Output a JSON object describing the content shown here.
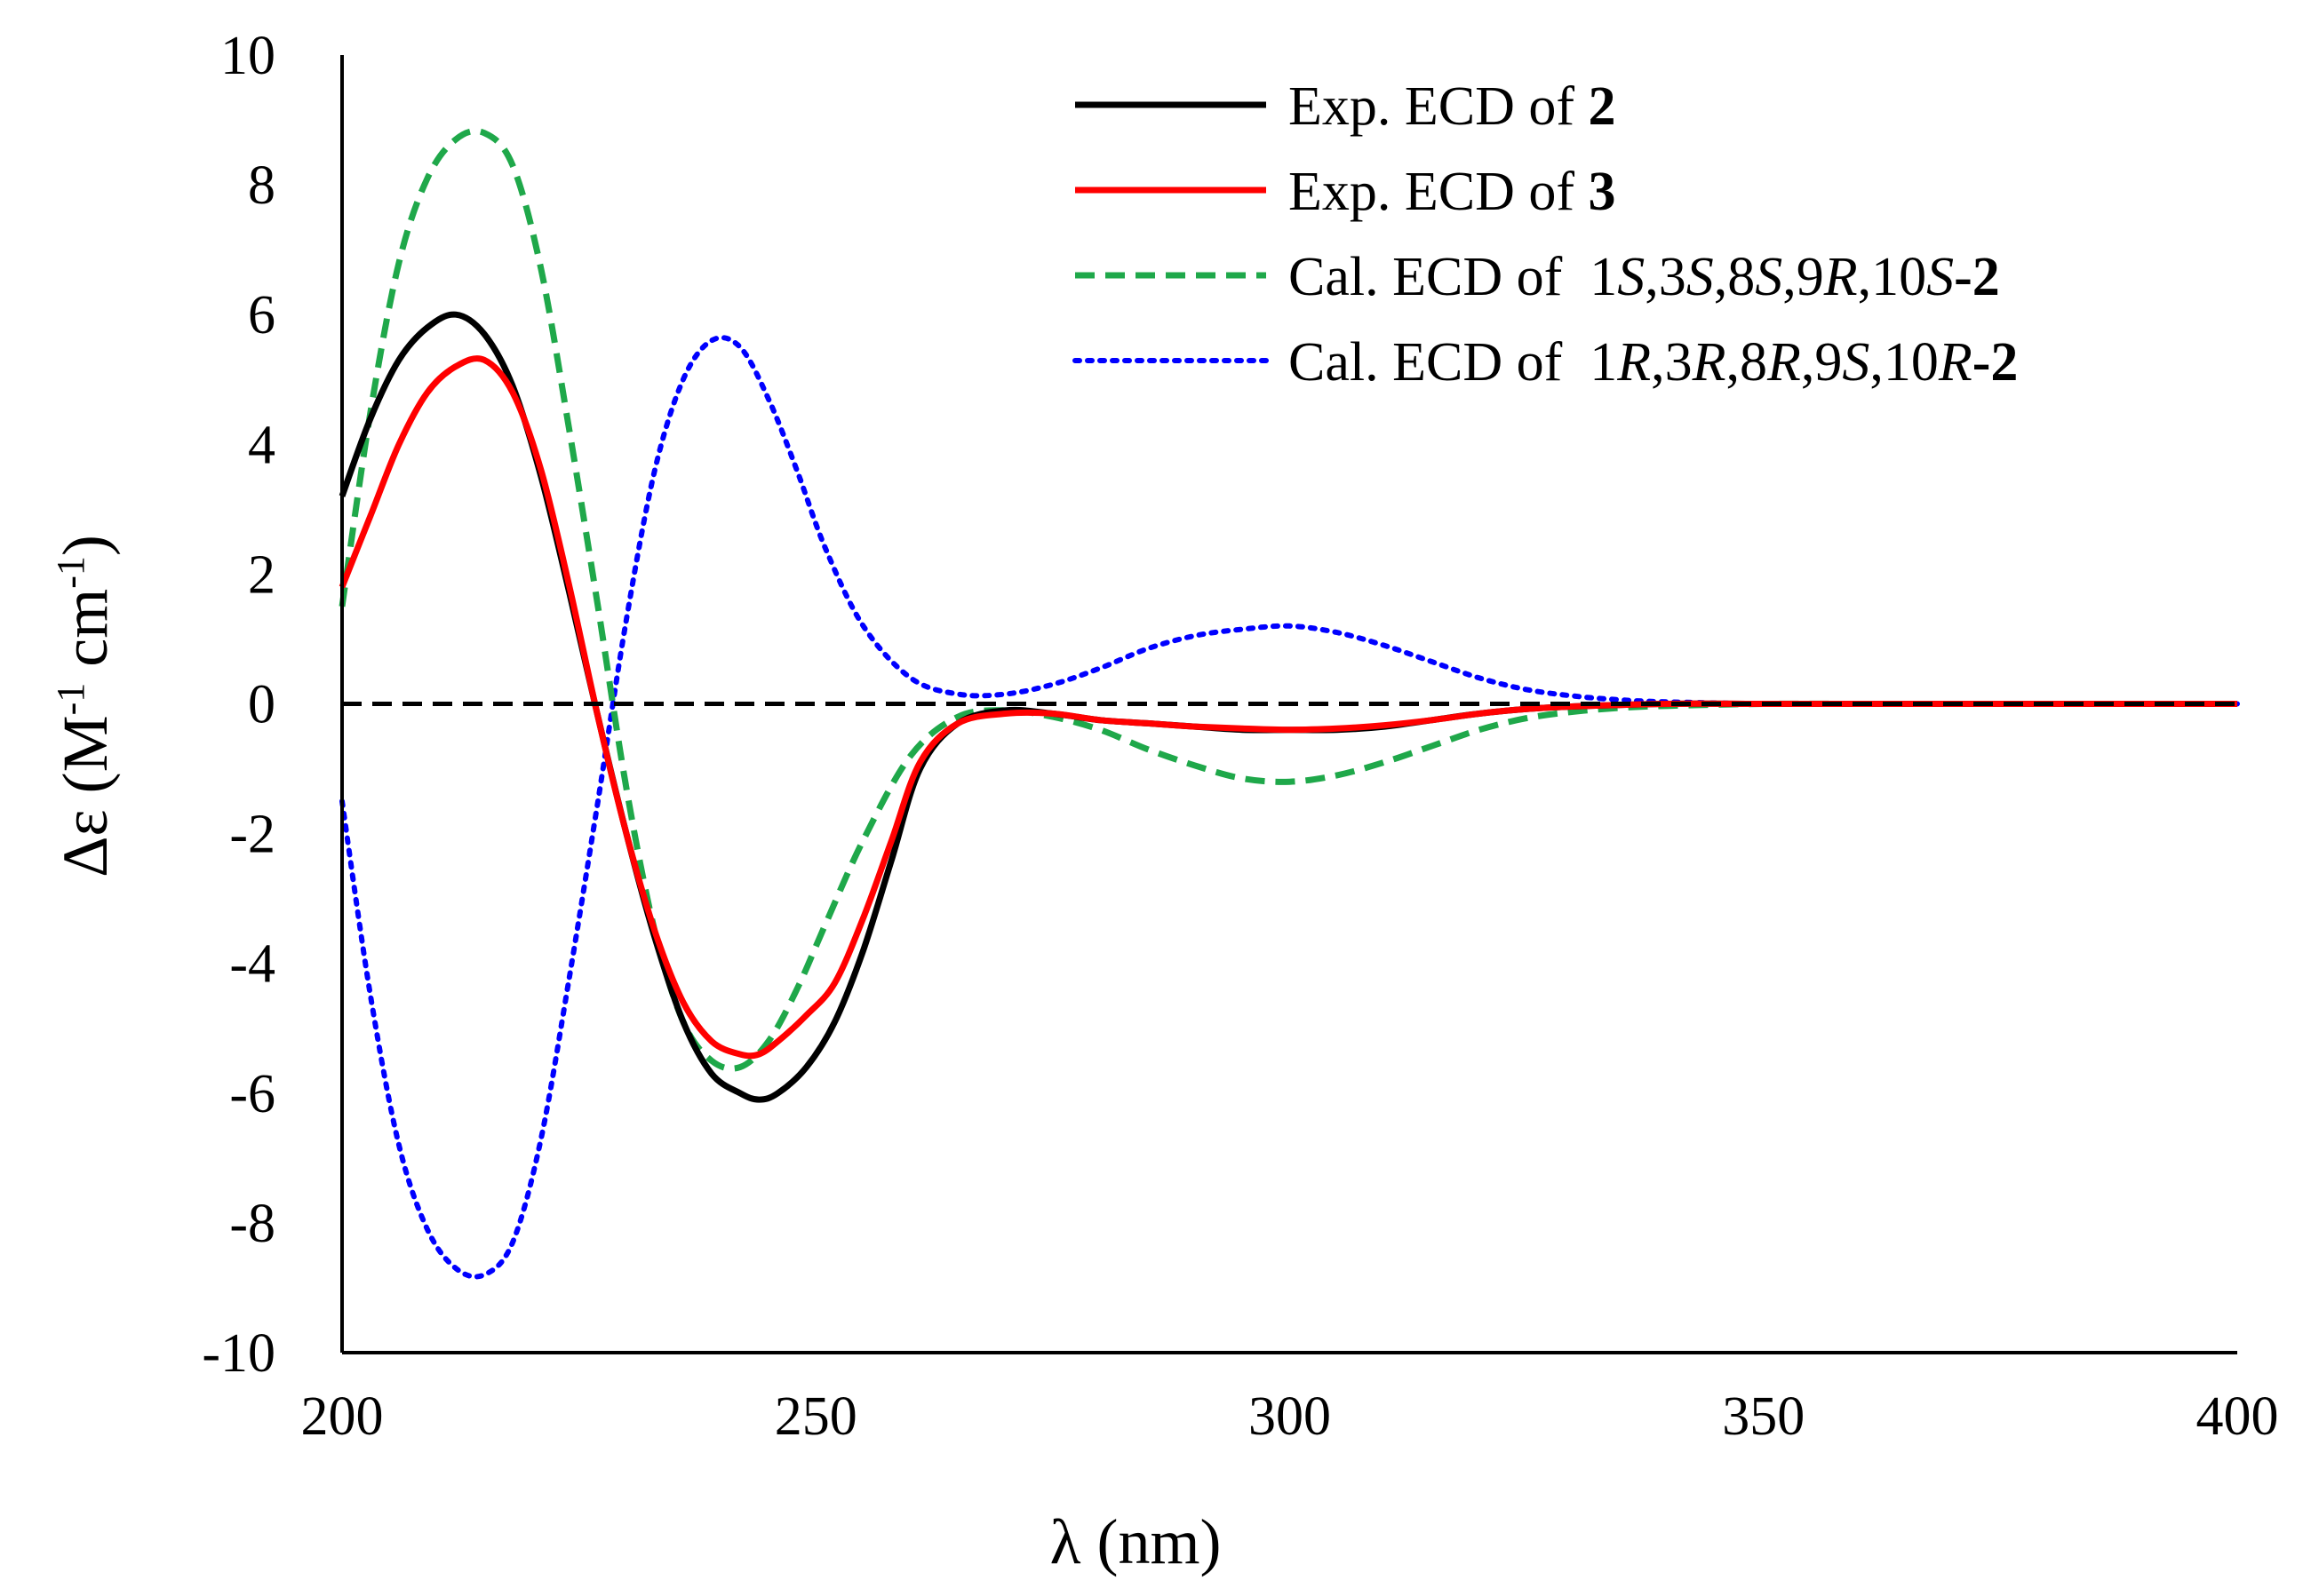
{
  "chart_data": {
    "type": "line",
    "title": "",
    "xlabel": "λ (nm)",
    "ylabel": {
      "base": "Δε (M",
      "sup1": "-1",
      "mid": " cm",
      "sup2": "-1",
      "end": ")"
    },
    "xlim": [
      200,
      400
    ],
    "ylim": [
      -10,
      10
    ],
    "x_ticks": [
      200,
      250,
      300,
      350,
      400
    ],
    "y_ticks": [
      -10,
      -8,
      -6,
      -4,
      -2,
      0,
      2,
      4,
      6,
      8,
      10
    ],
    "legend_position": "top-right",
    "zero_line": {
      "y": 0,
      "style": "dashed",
      "color": "#000000"
    },
    "series": [
      {
        "name": "Exp. ECD of 2",
        "legend": [
          {
            "text": "Exp. ECD of ",
            "style": "normal"
          },
          {
            "text": "2",
            "style": "bold"
          }
        ],
        "color": "#000000",
        "dash": "solid",
        "x": [
          200,
          203,
          206,
          209,
          212,
          215,
          218,
          221,
          224,
          227,
          230,
          233,
          236,
          239,
          242,
          244,
          246,
          249,
          252,
          255,
          258,
          261,
          265,
          270,
          275,
          280,
          285,
          290,
          295,
          300,
          305,
          310,
          315,
          320,
          325,
          330,
          340,
          350,
          360,
          370,
          380,
          390,
          400
        ],
        "y": [
          3.2,
          4.4,
          5.3,
          5.8,
          6.0,
          5.7,
          4.9,
          3.5,
          1.7,
          -0.2,
          -2.0,
          -3.6,
          -4.9,
          -5.7,
          -6.0,
          -6.1,
          -6.0,
          -5.6,
          -4.9,
          -3.8,
          -2.4,
          -1.0,
          -0.3,
          -0.1,
          -0.15,
          -0.25,
          -0.3,
          -0.35,
          -0.4,
          -0.4,
          -0.4,
          -0.35,
          -0.25,
          -0.15,
          -0.08,
          -0.04,
          0.0,
          0.0,
          0.0,
          0.0,
          0.0,
          0.0,
          0.0
        ]
      },
      {
        "name": "Exp. ECD of 3",
        "legend": [
          {
            "text": "Exp. ECD of ",
            "style": "normal"
          },
          {
            "text": "3",
            "style": "bold"
          }
        ],
        "color": "#ff0000",
        "dash": "solid",
        "x": [
          200,
          203,
          206,
          209,
          212,
          215,
          218,
          221,
          224,
          227,
          230,
          233,
          236,
          239,
          242,
          244,
          246,
          249,
          252,
          255,
          258,
          261,
          265,
          270,
          275,
          280,
          285,
          290,
          295,
          300,
          305,
          310,
          315,
          320,
          325,
          330,
          340,
          350,
          360,
          370,
          380,
          390,
          400
        ],
        "y": [
          1.8,
          2.9,
          4.0,
          4.8,
          5.2,
          5.3,
          4.8,
          3.6,
          1.8,
          -0.2,
          -2.0,
          -3.5,
          -4.6,
          -5.2,
          -5.4,
          -5.4,
          -5.2,
          -4.8,
          -4.3,
          -3.3,
          -2.1,
          -0.9,
          -0.3,
          -0.15,
          -0.15,
          -0.25,
          -0.3,
          -0.35,
          -0.38,
          -0.4,
          -0.38,
          -0.33,
          -0.25,
          -0.15,
          -0.08,
          -0.04,
          0.0,
          0.0,
          0.0,
          0.0,
          0.0,
          0.0,
          0.0
        ]
      },
      {
        "name": "Cal. ECD of 1S,3S,8S,9R,10S-2",
        "legend": [
          {
            "text": "Cal. ECD of  1",
            "style": "normal"
          },
          {
            "text": "S",
            "style": "italic"
          },
          {
            "text": ",3",
            "style": "normal"
          },
          {
            "text": "S",
            "style": "italic"
          },
          {
            "text": ",8",
            "style": "normal"
          },
          {
            "text": "S",
            "style": "italic"
          },
          {
            "text": ",9",
            "style": "normal"
          },
          {
            "text": "R",
            "style": "italic"
          },
          {
            "text": ",10",
            "style": "normal"
          },
          {
            "text": "S",
            "style": "italic"
          },
          {
            "text": "-2",
            "style": "bold"
          }
        ],
        "color": "#1fa84a",
        "dash": "dashed",
        "x": [
          200,
          203,
          206,
          209,
          212,
          215,
          218,
          221,
          224,
          227,
          230,
          233,
          236,
          239,
          242,
          245,
          248,
          251,
          255,
          260,
          265,
          270,
          275,
          280,
          285,
          290,
          295,
          300,
          305,
          310,
          315,
          320,
          325,
          330,
          335,
          340,
          350,
          360,
          370,
          380,
          390,
          400
        ],
        "y": [
          1.5,
          4.5,
          6.8,
          8.1,
          8.7,
          8.8,
          8.3,
          6.7,
          4.2,
          1.5,
          -1.3,
          -3.5,
          -4.9,
          -5.5,
          -5.6,
          -5.2,
          -4.4,
          -3.4,
          -2.1,
          -0.8,
          -0.2,
          -0.1,
          -0.2,
          -0.4,
          -0.7,
          -0.95,
          -1.15,
          -1.2,
          -1.1,
          -0.9,
          -0.65,
          -0.4,
          -0.22,
          -0.12,
          -0.06,
          -0.03,
          0.0,
          0.0,
          0.0,
          0.0,
          0.0,
          0.0
        ]
      },
      {
        "name": "Cal. ECD of 1R,3R,8R,9S,10R-2",
        "legend": [
          {
            "text": "Cal. ECD of  1",
            "style": "normal"
          },
          {
            "text": "R",
            "style": "italic"
          },
          {
            "text": ",3",
            "style": "normal"
          },
          {
            "text": "R",
            "style": "italic"
          },
          {
            "text": ",8",
            "style": "normal"
          },
          {
            "text": "R",
            "style": "italic"
          },
          {
            "text": ",9",
            "style": "normal"
          },
          {
            "text": "S",
            "style": "italic"
          },
          {
            "text": ",10",
            "style": "normal"
          },
          {
            "text": "R",
            "style": "italic"
          },
          {
            "text": "-2",
            "style": "bold"
          }
        ],
        "color": "#0000ff",
        "dash": "dotted",
        "x": [
          200,
          203,
          206,
          209,
          212,
          215,
          218,
          221,
          224,
          227,
          230,
          233,
          236,
          239,
          242,
          245,
          248,
          251,
          255,
          260,
          265,
          270,
          275,
          280,
          285,
          290,
          295,
          300,
          305,
          310,
          315,
          320,
          325,
          330,
          335,
          340,
          350,
          360,
          370,
          380,
          390,
          400
        ],
        "y": [
          -1.5,
          -4.5,
          -6.8,
          -8.1,
          -8.7,
          -8.8,
          -8.3,
          -6.7,
          -4.2,
          -1.5,
          1.3,
          3.6,
          5.0,
          5.6,
          5.5,
          4.7,
          3.6,
          2.4,
          1.2,
          0.4,
          0.15,
          0.15,
          0.3,
          0.55,
          0.85,
          1.05,
          1.15,
          1.2,
          1.1,
          0.9,
          0.65,
          0.4,
          0.22,
          0.12,
          0.06,
          0.03,
          0.0,
          0.0,
          0.0,
          0.0,
          0.0,
          0.0
        ]
      }
    ]
  }
}
